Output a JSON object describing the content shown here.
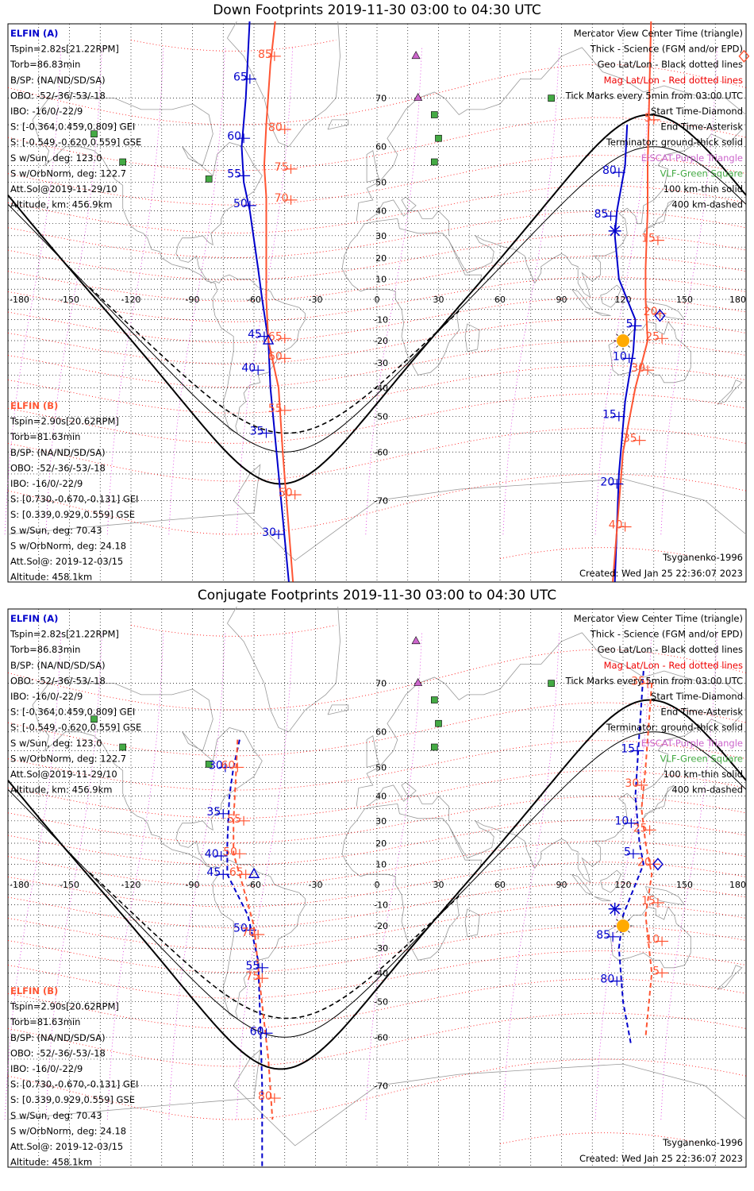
{
  "panels": [
    {
      "id": "down",
      "title": "Down Footprints 2019-11-30 03:00 to 04:30 UTC",
      "elfin_a": {
        "name": "ELFIN (A)",
        "lines": [
          "Tspin=2.82s[21.22RPM]",
          "Torb=86.83min",
          "B/SP: (NA/ND/SD/SA)",
          "OBO: -52/-36/-53/-18",
          "IBO: -16/0/-22/9",
          "S: [-0.364,0.459,0.809] GEI",
          "S: [-0.549,-0.620,0.559] GSE",
          "S w/Sun, deg: 123.0",
          "S w/OrbNorm, deg: 122.7",
          "Att.Sol@2019-11-29/10",
          "Altitude, km: 456.9km"
        ]
      },
      "elfin_b": {
        "name": "ELFIN (B)",
        "lines": [
          "Tspin=2.90s[20.62RPM]",
          "Torb=81.63min",
          "B/SP: (NA/ND/SD/SA)",
          "OBO: -52/-36/-53/-18",
          "IBO: -16/0/-22/9",
          "S: [0.730,-0.670,-0.131] GEI",
          "S: [0.339,0.929,0.559] GSE",
          "S w/Sun, deg: 70.43",
          "S w/OrbNorm, deg: 24.18",
          "Att.Sol@: 2019-12-03/15",
          "Altitude: 458.1km"
        ]
      },
      "legend": [
        "Mercator View Center Time (triangle)",
        "Thick - Science (FGM and/or EPD)",
        "Geo Lat/Lon - Black dotted lines",
        "Mag Lat/Lon - Red dotted lines",
        "Tick Marks every 5min from 03:00 UTC",
        "Start Time-Diamond",
        "End Time-Asterisk",
        "Terminator: ground-thick solid",
        "EISCAT-Purple Triangle",
        "VLF-Green Square",
        "100 km-thin solid",
        "400 km-dashed"
      ],
      "model": "Tsyganenko-1996",
      "created": "Created: Wed Jan 25 22:36:07 2023",
      "blue_labels": [
        [
          "65",
          -62,
          73
        ],
        [
          "60",
          -65,
          62
        ],
        [
          "55",
          -65,
          52
        ],
        [
          "50",
          -62,
          42
        ],
        [
          "45",
          -55,
          -18
        ],
        [
          "40",
          -58,
          -33
        ],
        [
          "35",
          -54,
          -55
        ],
        [
          "30",
          -48,
          -75
        ],
        [
          "80",
          118,
          53
        ],
        [
          "85",
          114,
          38
        ],
        [
          "5",
          126,
          -13
        ],
        [
          "10",
          123,
          -28
        ],
        [
          "15",
          118,
          -50
        ],
        [
          "20",
          117,
          -67
        ]
      ],
      "red_labels": [
        [
          "85",
          -50,
          76
        ],
        [
          "80",
          -45,
          64
        ],
        [
          "75",
          -42,
          54
        ],
        [
          "70",
          -42,
          44
        ],
        [
          "65",
          -45,
          -19
        ],
        [
          "60",
          -45,
          -28
        ],
        [
          "55",
          -45,
          -48
        ],
        [
          "50",
          -40,
          -69
        ],
        [
          "5",
          135,
          66
        ],
        [
          "15",
          137,
          28
        ],
        [
          "20",
          138,
          -7
        ],
        [
          "25",
          139,
          -19
        ],
        [
          "30",
          132,
          -33
        ],
        [
          "35",
          128,
          -57
        ],
        [
          "40",
          121,
          -74
        ]
      ]
    },
    {
      "id": "conjugate",
      "title": "Conjugate Footprints 2019-11-30 03:00 to 04:30 UTC",
      "elfin_a": {
        "name": "ELFIN (A)",
        "lines": [
          "Tspin=2.82s[21.22RPM]",
          "Torb=86.83min",
          "B/SP: (NA/ND/SD/SA)",
          "OBO: -52/-36/-53/-18",
          "IBO: -16/0/-22/9",
          "S: [-0.364,0.459,0.809] GEI",
          "S: [-0.549,-0.620,0.559] GSE",
          "S w/Sun, deg: 123.0",
          "S w/OrbNorm, deg: 122.7",
          "Att.Sol@2019-11-29/10",
          "Altitude, km: 456.9km"
        ]
      },
      "elfin_b": {
        "name": "ELFIN (B)",
        "lines": [
          "Tspin=2.90s[20.62RPM]",
          "Torb=81.63min",
          "B/SP: (NA/ND/SD/SA)",
          "OBO: -52/-36/-53/-18",
          "IBO: -16/0/-22/9",
          "S: [0.730,-0.670,-0.131] GEI",
          "S: [0.339,0.929,0.559] GSE",
          "S w/Sun, deg: 70.43",
          "S w/OrbNorm, deg: 24.18",
          "Att.Sol@: 2019-12-03/15",
          "Altitude: 458.1km"
        ]
      },
      "legend": [
        "Mercator View Center Time (triangle)",
        "Thick - Science (FGM and/or EPD)",
        "Geo Lat/Lon - Black dotted lines",
        "Mag Lat/Lon - Red dotted lines",
        "Tick Marks every 5min from 03:00 UTC",
        "Start Time-Diamond",
        "End Time-Asterisk",
        "Terminator: ground-thick solid",
        "EISCAT-Purple Triangle",
        "VLF-Green Square",
        "100 km-thin solid",
        "400 km-dashed"
      ],
      "model": "Tsyganenko-1996",
      "created": "Created: Wed Jan 25 22:36:07 2023",
      "blue_labels": [
        [
          "30",
          -74,
          50
        ],
        [
          "35",
          -75,
          33
        ],
        [
          "40",
          -76,
          14
        ],
        [
          "45",
          -75,
          5
        ],
        [
          "50",
          -62,
          -22
        ],
        [
          "55",
          -56,
          -38
        ],
        [
          "60",
          -54,
          -59
        ],
        [
          "15",
          127,
          55
        ],
        [
          "10",
          124,
          29
        ],
        [
          "5",
          125,
          15
        ],
        [
          "85",
          115,
          -25
        ],
        [
          "80",
          117,
          -43
        ]
      ],
      "red_labels": [
        [
          "60",
          -68,
          50
        ],
        [
          "55",
          -65,
          30
        ],
        [
          "50",
          -67,
          15
        ],
        [
          "65",
          -64,
          5
        ],
        [
          "70",
          -58,
          -24
        ],
        [
          "75",
          -56,
          -42
        ],
        [
          "80",
          -50,
          -72
        ],
        [
          "35",
          132,
          70
        ],
        [
          "30",
          129,
          44
        ],
        [
          "25",
          133,
          26
        ],
        [
          "20",
          135,
          10
        ],
        [
          "15",
          137,
          -9
        ],
        [
          "10",
          139,
          -27
        ],
        [
          "5",
          139,
          -40
        ]
      ]
    }
  ],
  "axes": {
    "lon_ticks": [
      -180,
      -150,
      -120,
      -90,
      -60,
      -30,
      0,
      30,
      60,
      90,
      120,
      150,
      180
    ],
    "lat_ticks": [
      70,
      60,
      50,
      40,
      30,
      20,
      10,
      0,
      -10,
      -20,
      -30,
      -40,
      -50,
      -60,
      -70
    ]
  },
  "colors": {
    "blue": "#0000cc",
    "red": "#ff5533",
    "purple": "#cc66cc",
    "green": "#44aa44",
    "sun": "#ffaa00",
    "coast": "#999999"
  }
}
